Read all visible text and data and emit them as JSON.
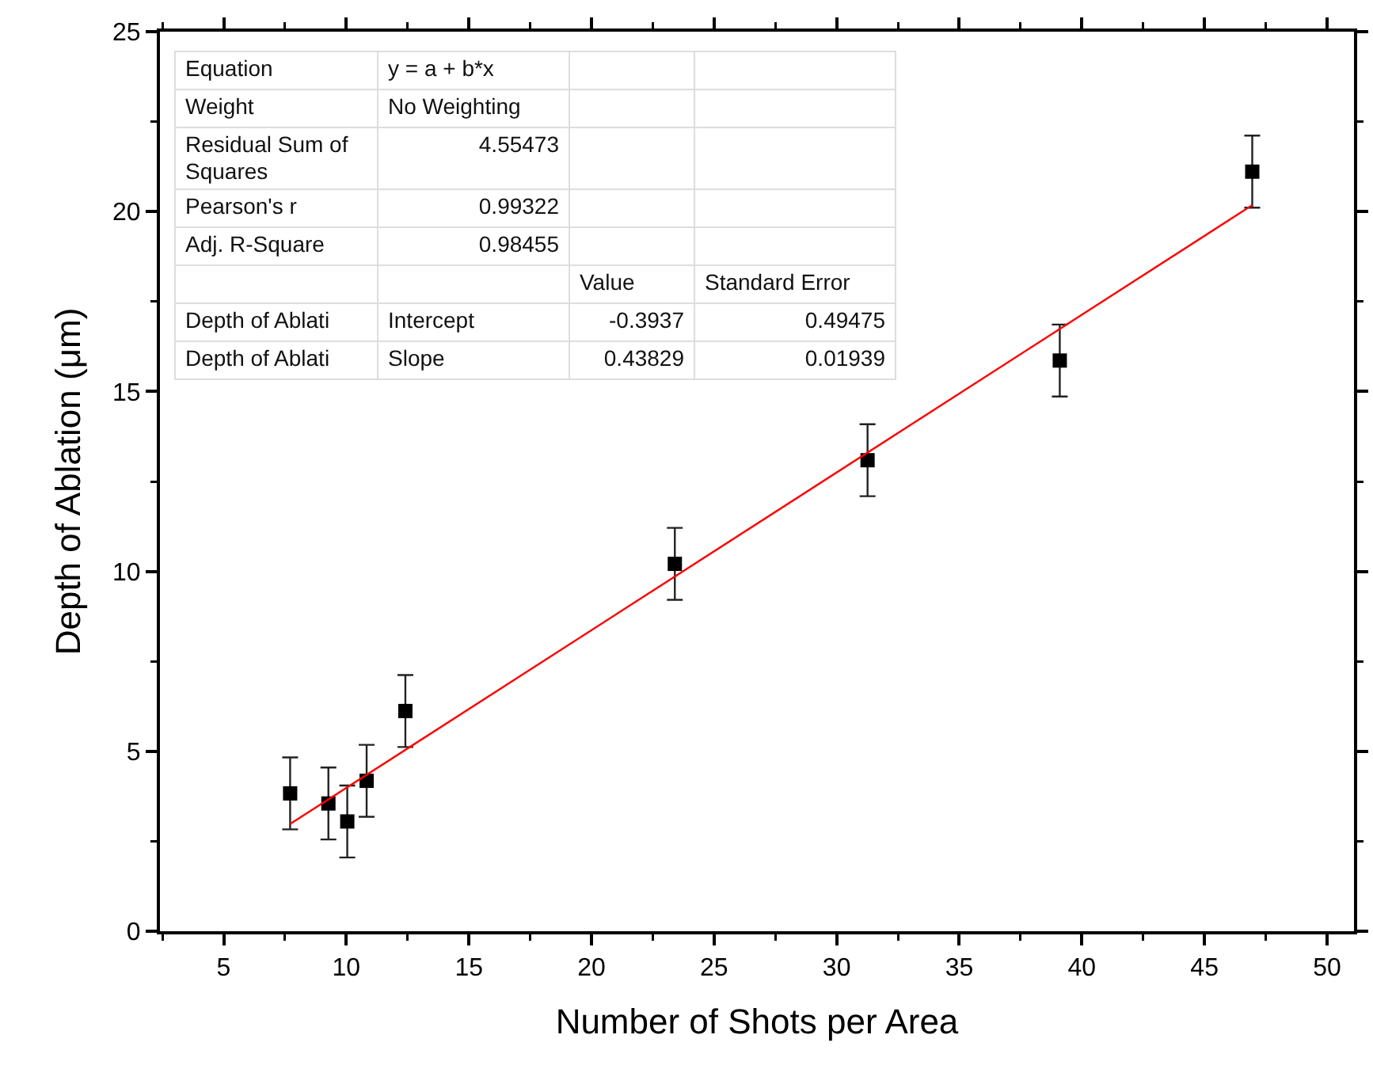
{
  "chart_data": {
    "type": "scatter",
    "xlabel": "Number of Shots per Area",
    "ylabel": "Depth of Ablation (μm)",
    "xlim": [
      2.4,
      51.1
    ],
    "xticks": [
      5,
      10,
      15,
      20,
      25,
      30,
      35,
      40,
      45,
      50
    ],
    "ylim": [
      0,
      25
    ],
    "yticks": [
      0,
      5,
      10,
      15,
      20,
      25
    ],
    "grid": false,
    "series": [
      {
        "marker": "square",
        "color": "#000000",
        "x": [
          7.71,
          9.27,
          10.04,
          10.83,
          12.41,
          23.4,
          31.26,
          39.1,
          46.95
        ],
        "values": [
          3.83,
          3.55,
          3.05,
          4.18,
          6.12,
          10.21,
          13.09,
          15.86,
          21.11
        ],
        "errors": [
          1,
          1,
          1,
          1,
          1,
          1,
          1,
          1,
          1
        ]
      },
      {
        "type": "line",
        "color": "#ff0000",
        "x": [
          7.71,
          46.95
        ],
        "values": [
          2.98,
          20.18
        ],
        "line_style": "solid"
      }
    ],
    "annotations": [
      "Equation",
      "y = a + b*x",
      "Weight",
      "No Weighting",
      "Residual Sum of Squares",
      "4.55473",
      "Pearson's r",
      "0.99322",
      "Adj. R-Square",
      "0.98455",
      "Value",
      "Standard Error",
      "Depth of Ablati",
      "Intercept",
      "-0.3937",
      "0.49475",
      "Depth of Ablati",
      "Slope",
      "0.43829",
      "0.01939"
    ]
  }
}
